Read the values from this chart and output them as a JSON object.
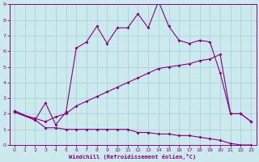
{
  "xlabel": "Windchill (Refroidissement éolien,°C)",
  "bg_color": "#cce9ed",
  "grid_color": "#aad4d8",
  "line_color": "#880088",
  "spine_color": "#880088",
  "xlim": [
    -0.5,
    23.5
  ],
  "ylim": [
    0,
    9
  ],
  "xticks": [
    0,
    1,
    2,
    3,
    4,
    5,
    6,
    7,
    8,
    9,
    10,
    11,
    12,
    13,
    14,
    15,
    16,
    17,
    18,
    19,
    20,
    21,
    22,
    23
  ],
  "yticks": [
    0,
    1,
    2,
    3,
    4,
    5,
    6,
    7,
    8,
    9
  ],
  "series1_x": [
    0,
    2,
    3,
    4,
    5,
    6,
    7,
    8,
    9,
    10,
    11,
    12,
    13,
    14,
    15,
    16,
    17,
    18,
    19,
    20,
    21,
    22,
    23
  ],
  "series1_y": [
    2.1,
    1.6,
    1.1,
    1.1,
    1.0,
    1.0,
    1.0,
    1.0,
    1.0,
    1.0,
    1.0,
    0.8,
    0.8,
    0.7,
    0.7,
    0.6,
    0.6,
    0.5,
    0.4,
    0.3,
    0.1,
    0.0,
    0.0
  ],
  "series2_x": [
    0,
    2,
    3,
    4,
    5,
    6,
    7,
    8,
    9,
    10,
    11,
    12,
    13,
    14,
    15,
    16,
    17,
    18,
    19,
    20,
    21,
    22,
    23
  ],
  "series2_y": [
    2.1,
    1.7,
    1.5,
    1.8,
    2.0,
    2.5,
    2.8,
    3.1,
    3.4,
    3.7,
    4.0,
    4.3,
    4.6,
    4.9,
    5.0,
    5.1,
    5.2,
    5.4,
    5.5,
    5.8,
    2.0,
    2.0,
    1.5
  ],
  "series3_x": [
    0,
    2,
    3,
    4,
    5,
    6,
    7,
    8,
    9,
    10,
    11,
    12,
    13,
    14,
    15,
    16,
    17,
    18,
    19,
    20,
    21,
    22,
    23
  ],
  "series3_y": [
    2.2,
    1.6,
    2.7,
    1.3,
    2.1,
    6.2,
    6.6,
    7.6,
    6.5,
    7.5,
    7.5,
    8.4,
    7.5,
    9.2,
    7.6,
    6.7,
    6.5,
    6.7,
    6.6,
    4.6,
    2.0,
    2.0,
    1.5
  ]
}
